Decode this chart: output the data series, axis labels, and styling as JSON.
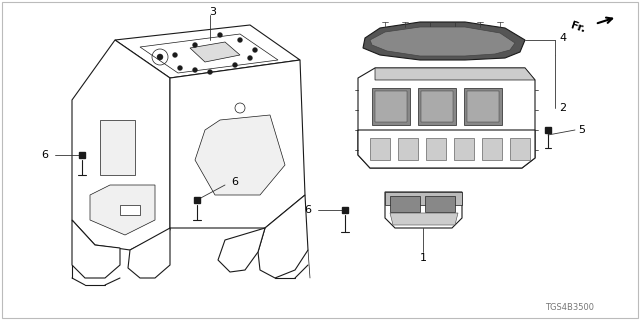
{
  "diagram_code": "TGS4B3500",
  "background_color": "#ffffff",
  "line_color": "#1a1a1a",
  "label_color": "#000000",
  "border_color": "#bbbbbb",
  "figsize": [
    6.4,
    3.2
  ],
  "dpi": 100
}
